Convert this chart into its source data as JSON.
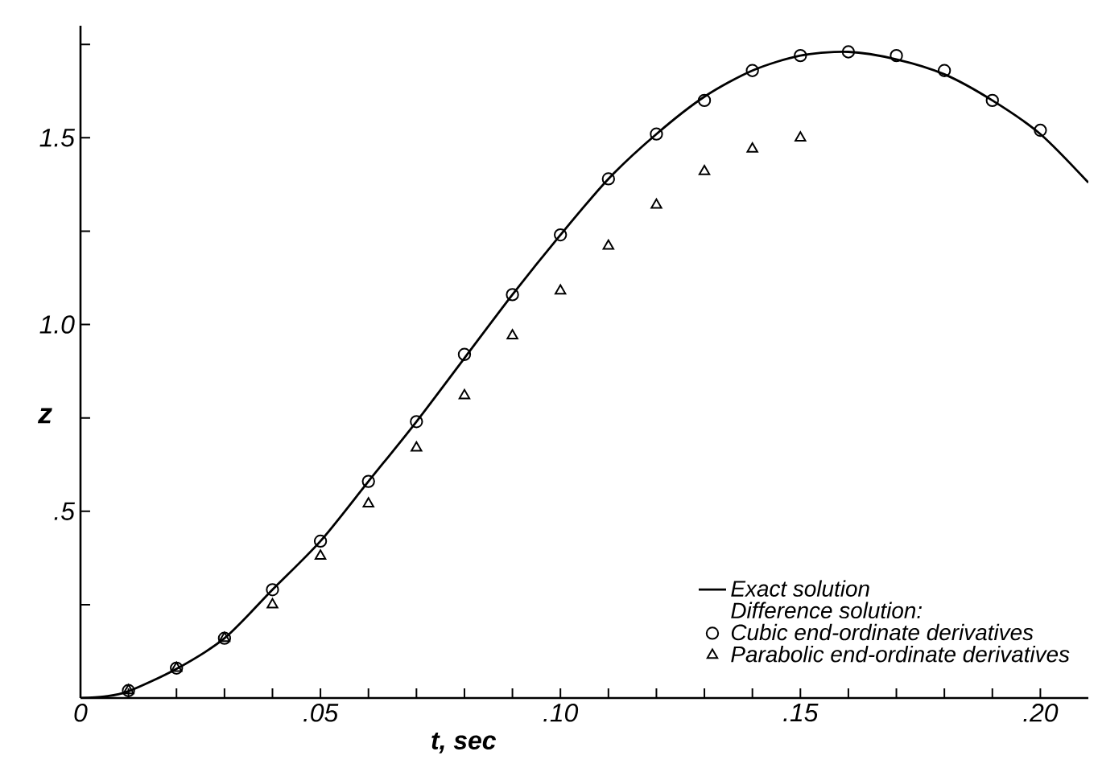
{
  "chart_data": {
    "type": "line",
    "xlabel": "t, sec",
    "ylabel": "z",
    "legend_title": "Difference solution:",
    "legend": "bottom right",
    "grid": false,
    "xlim": [
      0,
      0.21
    ],
    "ylim": [
      0,
      1.8
    ],
    "xticks": [
      {
        "value": 0,
        "label": "0"
      },
      {
        "value": 0.01,
        "label": null
      },
      {
        "value": 0.02,
        "label": null
      },
      {
        "value": 0.03,
        "label": null
      },
      {
        "value": 0.04,
        "label": null
      },
      {
        "value": 0.05,
        "label": ".05"
      },
      {
        "value": 0.06,
        "label": null
      },
      {
        "value": 0.07,
        "label": null
      },
      {
        "value": 0.08,
        "label": null
      },
      {
        "value": 0.09,
        "label": null
      },
      {
        "value": 0.1,
        "label": ".10"
      },
      {
        "value": 0.11,
        "label": null
      },
      {
        "value": 0.12,
        "label": null
      },
      {
        "value": 0.13,
        "label": null
      },
      {
        "value": 0.14,
        "label": null
      },
      {
        "value": 0.15,
        "label": ".15"
      },
      {
        "value": 0.16,
        "label": null
      },
      {
        "value": 0.17,
        "label": null
      },
      {
        "value": 0.18,
        "label": null
      },
      {
        "value": 0.19,
        "label": null
      },
      {
        "value": 0.2,
        "label": ".20"
      }
    ],
    "yticks": [
      {
        "value": 0,
        "label": null
      },
      {
        "value": 0.25,
        "label": null
      },
      {
        "value": 0.5,
        "label": ".5"
      },
      {
        "value": 0.75,
        "label": null
      },
      {
        "value": 1.0,
        "label": "1.0"
      },
      {
        "value": 1.25,
        "label": null
      },
      {
        "value": 1.5,
        "label": "1.5"
      },
      {
        "value": 1.75,
        "label": null
      }
    ],
    "series": [
      {
        "name": "Exact solution",
        "marker": "none",
        "line_style": "solid",
        "color": "#000000",
        "x": [
          0,
          0.005,
          0.01,
          0.02,
          0.03,
          0.04,
          0.05,
          0.06,
          0.07,
          0.08,
          0.09,
          0.1,
          0.11,
          0.12,
          0.13,
          0.14,
          0.15,
          0.16,
          0.17,
          0.18,
          0.19,
          0.2,
          0.21
        ],
        "values": [
          0,
          0.004,
          0.018,
          0.078,
          0.16,
          0.29,
          0.42,
          0.58,
          0.74,
          0.91,
          1.08,
          1.24,
          1.39,
          1.51,
          1.61,
          1.68,
          1.72,
          1.73,
          1.71,
          1.67,
          1.6,
          1.51,
          1.38
        ]
      },
      {
        "name": "Cubic end-ordinate derivatives",
        "type": "scatter",
        "marker": "circle",
        "color": "#000000",
        "x": [
          0.01,
          0.02,
          0.03,
          0.04,
          0.05,
          0.06,
          0.07,
          0.08,
          0.09,
          0.1,
          0.11,
          0.12,
          0.13,
          0.14,
          0.15,
          0.16,
          0.17,
          0.18,
          0.19,
          0.2
        ],
        "values": [
          0.02,
          0.08,
          0.16,
          0.29,
          0.42,
          0.58,
          0.74,
          0.92,
          1.08,
          1.24,
          1.39,
          1.51,
          1.6,
          1.68,
          1.72,
          1.73,
          1.72,
          1.68,
          1.6,
          1.52
        ]
      },
      {
        "name": "Parabolic end-ordinate derivatives",
        "type": "scatter",
        "marker": "triangle",
        "color": "#000000",
        "x": [
          0.01,
          0.02,
          0.03,
          0.04,
          0.05,
          0.06,
          0.07,
          0.08,
          0.09,
          0.1,
          0.11,
          0.12,
          0.13,
          0.14,
          0.15
        ],
        "values": [
          0.02,
          0.08,
          0.16,
          0.25,
          0.38,
          0.52,
          0.67,
          0.81,
          0.97,
          1.09,
          1.21,
          1.32,
          1.41,
          1.47,
          1.5
        ]
      }
    ]
  }
}
